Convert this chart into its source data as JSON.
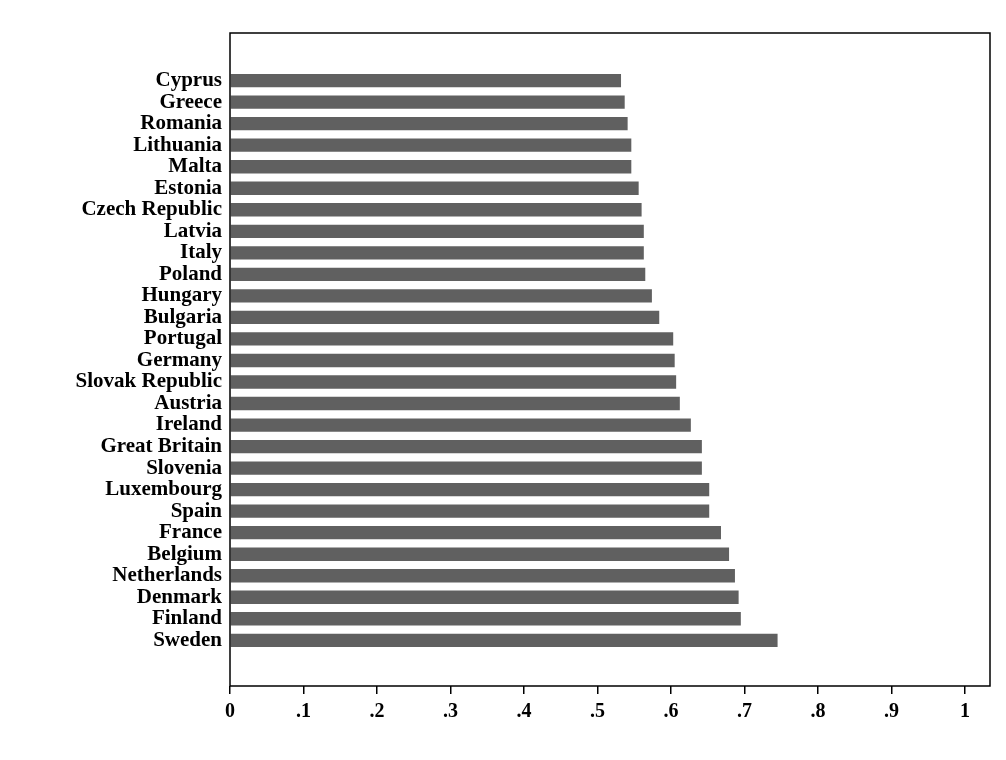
{
  "chart_data": {
    "type": "bar",
    "orientation": "horizontal",
    "categories": [
      "Cyprus",
      "Greece",
      "Romania",
      "Lithuania",
      "Malta",
      "Estonia",
      "Czech Republic",
      "Latvia",
      "Italy",
      "Poland",
      "Hungary",
      "Bulgaria",
      "Portugal",
      "Germany",
      "Slovak Republic",
      "Austria",
      "Ireland",
      "Great Britain",
      "Slovenia",
      "Luxembourg",
      "Spain",
      "France",
      "Belgium",
      "Netherlands",
      "Denmark",
      "Finland",
      "Sweden"
    ],
    "values": [
      0.532,
      0.537,
      0.541,
      0.546,
      0.546,
      0.556,
      0.56,
      0.563,
      0.563,
      0.565,
      0.574,
      0.584,
      0.603,
      0.605,
      0.607,
      0.612,
      0.627,
      0.642,
      0.642,
      0.652,
      0.652,
      0.668,
      0.679,
      0.687,
      0.692,
      0.695,
      0.745
    ],
    "color": "#606060",
    "xlim": [
      0,
      1.034
    ],
    "xticks": [
      0,
      {
        "value": 0.1,
        "label": ".1"
      },
      {
        "value": 0.2,
        "label": ".2"
      },
      {
        "value": 0.3,
        "label": ".3"
      },
      {
        "value": 0.4,
        "label": ".4"
      },
      {
        "value": 0.5,
        "label": ".5"
      },
      {
        "value": 0.6,
        "label": ".6"
      },
      {
        "value": 0.7,
        "label": ".7"
      },
      {
        "value": 0.8,
        "label": ".8"
      },
      {
        "value": 0.9,
        "label": ".9"
      },
      1
    ],
    "grid": false
  }
}
